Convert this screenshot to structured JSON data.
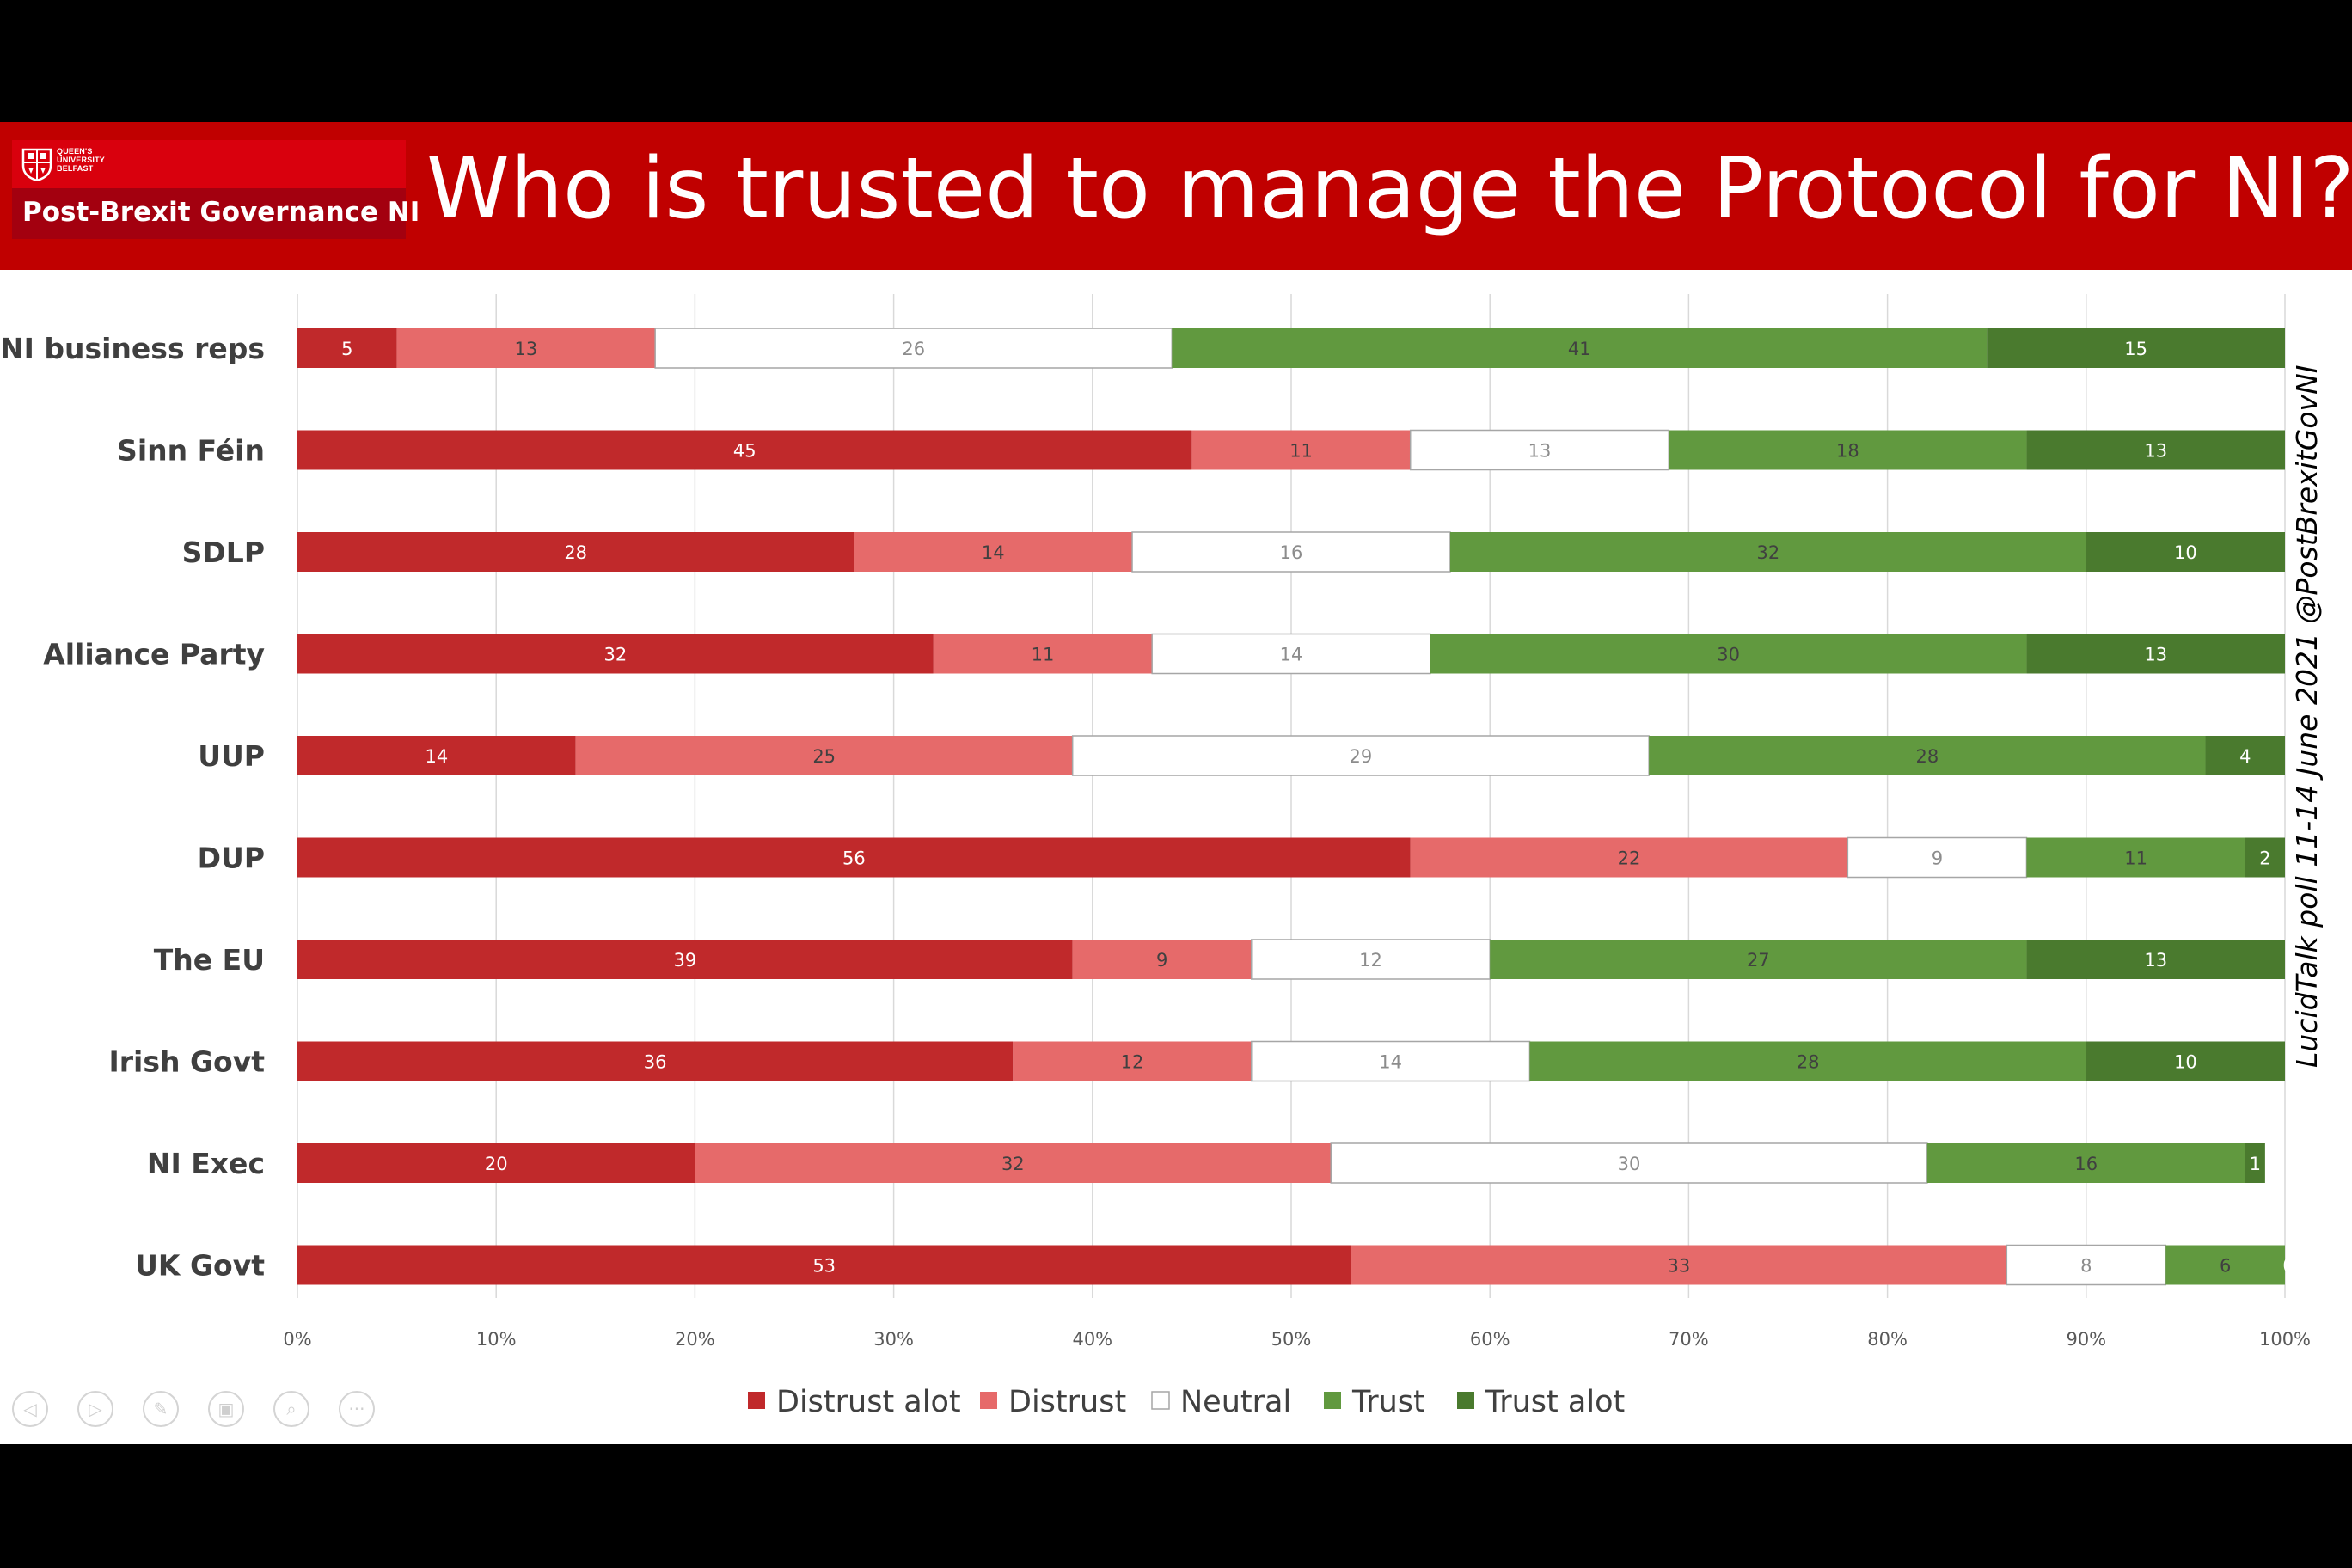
{
  "slide": {
    "title": "Who is trusted to manage the Protocol for NI?",
    "logo": {
      "university": "QUEEN'S UNIVERSITY BELFAST",
      "brand": "Post-Brexit Governance NI",
      "crest_icon": "university-crest-icon"
    },
    "source_note": "LucidTalk poll 11-14 June 2021 @PostBrexitGovNI",
    "colors": {
      "header": "#c00000",
      "distrust_alot": "#c0292b",
      "distrust": "#e66a6a",
      "neutral": "#ffffff",
      "trust": "#61993f",
      "trust_alot": "#4a7a2e"
    },
    "controls": [
      {
        "name": "previous-icon",
        "glyph": "◁"
      },
      {
        "name": "next-icon",
        "glyph": "▷"
      },
      {
        "name": "pen-icon",
        "glyph": "✎"
      },
      {
        "name": "slides-icon",
        "glyph": "▣"
      },
      {
        "name": "zoom-icon",
        "glyph": "⌕"
      },
      {
        "name": "more-icon",
        "glyph": "···"
      }
    ]
  },
  "chart_data": {
    "type": "bar",
    "orientation": "horizontal",
    "stacked": true,
    "title": "Who is trusted to manage the Protocol for NI?",
    "categories": [
      "NI business reps",
      "Sinn Féin",
      "SDLP",
      "Alliance Party",
      "UUP",
      "DUP",
      "The EU",
      "Irish Govt",
      "NI Exec",
      "UK Govt"
    ],
    "series": [
      {
        "name": "Distrust alot",
        "color": "#c0292b",
        "values": [
          5,
          45,
          28,
          32,
          14,
          56,
          39,
          36,
          20,
          53
        ]
      },
      {
        "name": "Distrust",
        "color": "#e66a6a",
        "values": [
          13,
          11,
          14,
          11,
          25,
          22,
          9,
          12,
          32,
          33
        ]
      },
      {
        "name": "Neutral",
        "color": "#ffffff",
        "values": [
          26,
          13,
          16,
          14,
          29,
          9,
          12,
          14,
          30,
          8
        ]
      },
      {
        "name": "Trust",
        "color": "#61993f",
        "values": [
          41,
          18,
          32,
          30,
          28,
          11,
          27,
          28,
          16,
          6
        ]
      },
      {
        "name": "Trust alot",
        "color": "#4a7a2e",
        "values": [
          15,
          13,
          10,
          13,
          4,
          2,
          13,
          10,
          1,
          0
        ]
      }
    ],
    "xlim": [
      0,
      100
    ],
    "x_ticks": [
      "0%",
      "10%",
      "20%",
      "30%",
      "40%",
      "50%",
      "60%",
      "70%",
      "80%",
      "90%",
      "100%"
    ],
    "grid": true,
    "legend_position": "bottom"
  }
}
